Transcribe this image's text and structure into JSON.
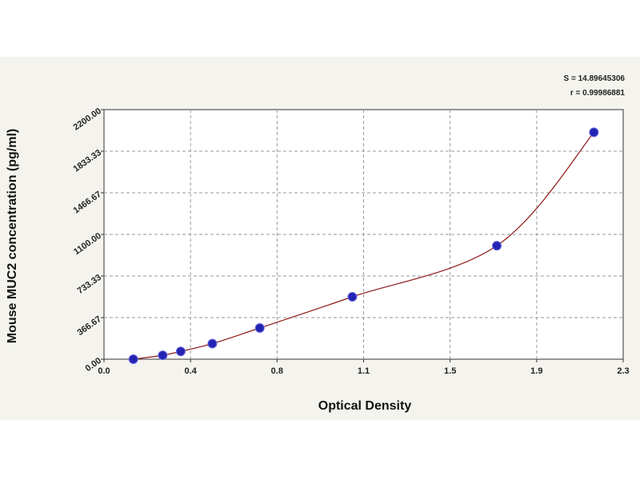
{
  "chart_data": {
    "type": "scatter",
    "xlabel": "Optical Density",
    "ylabel": "Mouse MUC2 concentration (pg/ml)",
    "xlim": [
      0.0,
      2.3
    ],
    "ylim": [
      0.0,
      2200.0
    ],
    "x_ticks": [
      "0.0",
      "0.4",
      "0.8",
      "1.1",
      "1.5",
      "1.9",
      "2.3"
    ],
    "y_ticks": [
      "0.00",
      "366.67",
      "733.33",
      "1100.00",
      "1466.67",
      "1833.33",
      "2200.00"
    ],
    "grid": true,
    "fit_stats": [
      "S = 14.89645306",
      "r = 0.99986881"
    ],
    "series": [
      {
        "points": [
          {
            "x": 0.13,
            "y": 0
          },
          {
            "x": 0.26,
            "y": 34.4
          },
          {
            "x": 0.34,
            "y": 68.8
          },
          {
            "x": 0.48,
            "y": 137.5
          },
          {
            "x": 0.69,
            "y": 275
          },
          {
            "x": 1.1,
            "y": 550
          },
          {
            "x": 1.74,
            "y": 1000
          },
          {
            "x": 2.17,
            "y": 2000
          }
        ],
        "marker_color": "#2424b4",
        "curve_color": "#8b1a1a"
      }
    ]
  }
}
